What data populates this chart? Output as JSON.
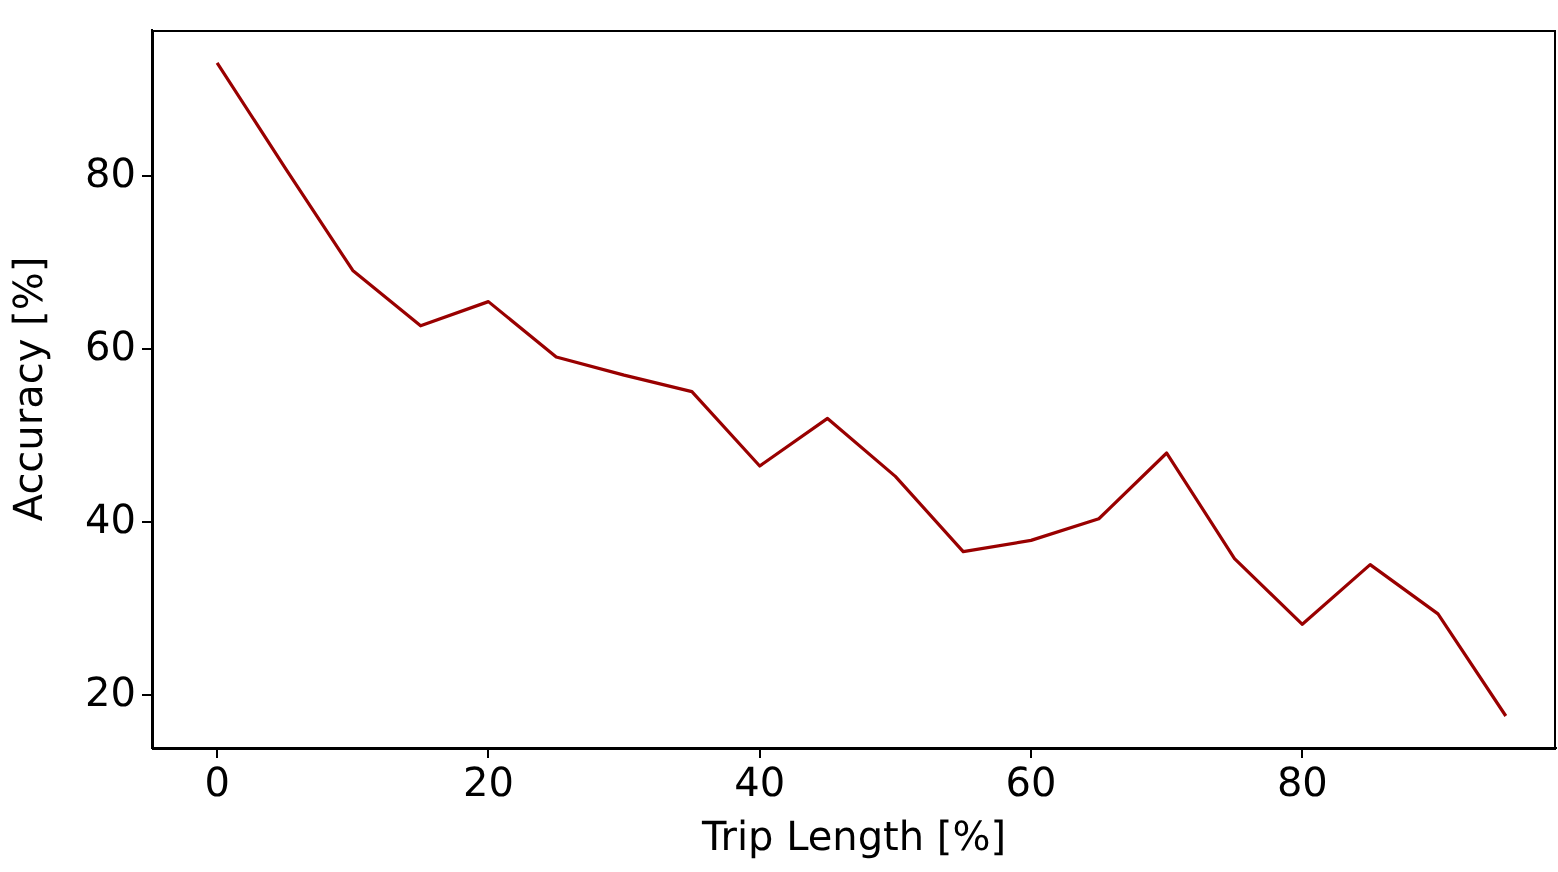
{
  "chart_data": {
    "type": "line",
    "xlabel": "Trip Length [%]",
    "ylabel": "Accuracy [%]",
    "x": [
      0,
      5,
      10,
      15,
      20,
      25,
      30,
      35,
      40,
      45,
      50,
      55,
      60,
      65,
      70,
      75,
      80,
      85,
      90,
      95
    ],
    "series": [
      {
        "color": "#990000",
        "values": [
          93.1,
          81,
          69.1,
          62.7,
          65.5,
          59.1,
          57,
          55.1,
          46.5,
          52.0,
          45.3,
          36.6,
          37.9,
          40.4,
          48.0,
          35.8,
          28.2,
          35.1,
          29.4,
          17.6
        ]
      }
    ],
    "xlim": [
      -4.8,
      98.7
    ],
    "xticks": [
      0,
      20,
      40,
      60,
      80
    ],
    "ylim": [
      13.9,
      96.9
    ],
    "yticks": [
      20,
      40,
      60,
      80
    ],
    "grid": false,
    "legend": false,
    "marker": "none",
    "line_style": "solid"
  }
}
